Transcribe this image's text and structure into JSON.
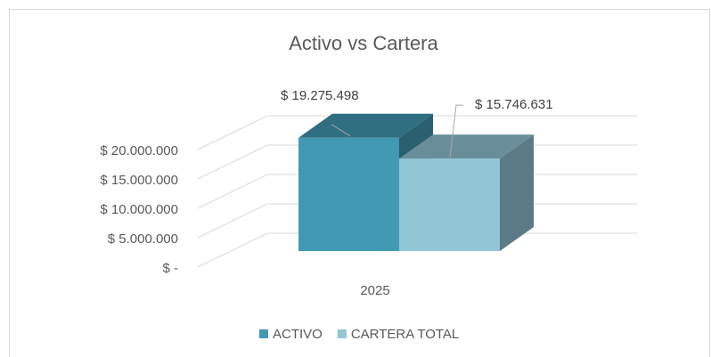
{
  "chart_data": {
    "type": "bar3d",
    "title": "Activo vs Cartera",
    "categories": [
      "2025"
    ],
    "series": [
      {
        "name": "ACTIVO",
        "color": "#4299b3",
        "values": [
          19275498
        ],
        "value_labels": [
          "$ 19.275.498"
        ]
      },
      {
        "name": "CARTERA TOTAL",
        "color": "#92c5d6",
        "values": [
          15746631
        ],
        "value_labels": [
          "$ 15.746.631"
        ]
      }
    ],
    "ylim": [
      0,
      20000000
    ],
    "yticks": [
      {
        "value": 0,
        "label": "$ -"
      },
      {
        "value": 5000000,
        "label": "$ 5.000.000"
      },
      {
        "value": 10000000,
        "label": "$ 10.000.000"
      },
      {
        "value": 15000000,
        "label": "$ 15.000.000"
      },
      {
        "value": 20000000,
        "label": "$ 20.000.000"
      }
    ],
    "grid": true,
    "legend": "bottom"
  }
}
